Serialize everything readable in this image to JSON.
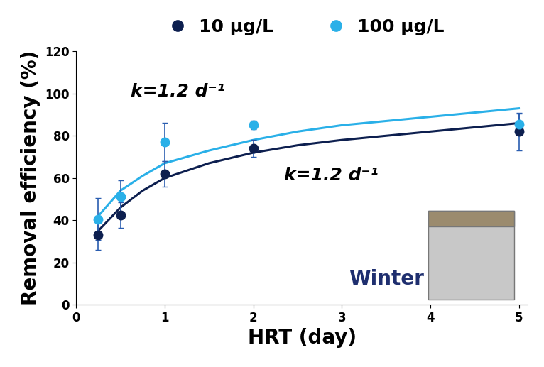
{
  "chart_data": {
    "type": "scatter",
    "x_label": "HRT (day)",
    "y_label": "Removal efficiency (%)",
    "x": [
      0.25,
      0.5,
      1,
      2,
      5
    ],
    "series": [
      {
        "name": "10 μg/L",
        "color": "#0d1f4f",
        "marker": "o",
        "values": [
          33,
          42.5,
          62,
          74,
          82
        ],
        "error": [
          7,
          6,
          6,
          4,
          9
        ],
        "fit": {
          "x": [
            0.25,
            0.5,
            0.75,
            1,
            1.5,
            2,
            2.5,
            3,
            3.5,
            4,
            4.5,
            5
          ],
          "values": [
            35,
            46,
            54,
            60,
            67,
            72,
            75.5,
            78,
            80,
            82,
            84,
            86
          ]
        }
      },
      {
        "name": "100 μg/L",
        "color": "#2ab0e8",
        "marker": "o",
        "values": [
          40.5,
          51,
          77,
          85,
          85.5
        ],
        "error": [
          10,
          8,
          9,
          2,
          5
        ],
        "fit": {
          "x": [
            0.25,
            0.5,
            0.75,
            1,
            1.5,
            2,
            2.5,
            3,
            3.5,
            4,
            4.5,
            5
          ],
          "values": [
            42,
            54,
            61,
            67,
            73,
            78,
            82,
            85,
            87,
            89,
            91,
            93
          ]
        }
      }
    ],
    "annotations": [
      "k=1.2 d⁻¹",
      "k=1.2 d⁻¹",
      "Winter"
    ],
    "xlim": [
      0,
      5.1
    ],
    "xticks": [
      0,
      1,
      2,
      3,
      4,
      5
    ],
    "ylim": [
      0,
      120
    ],
    "yticks": [
      0,
      20,
      40,
      60,
      80,
      100,
      120
    ],
    "grid": false,
    "legend": "top"
  }
}
